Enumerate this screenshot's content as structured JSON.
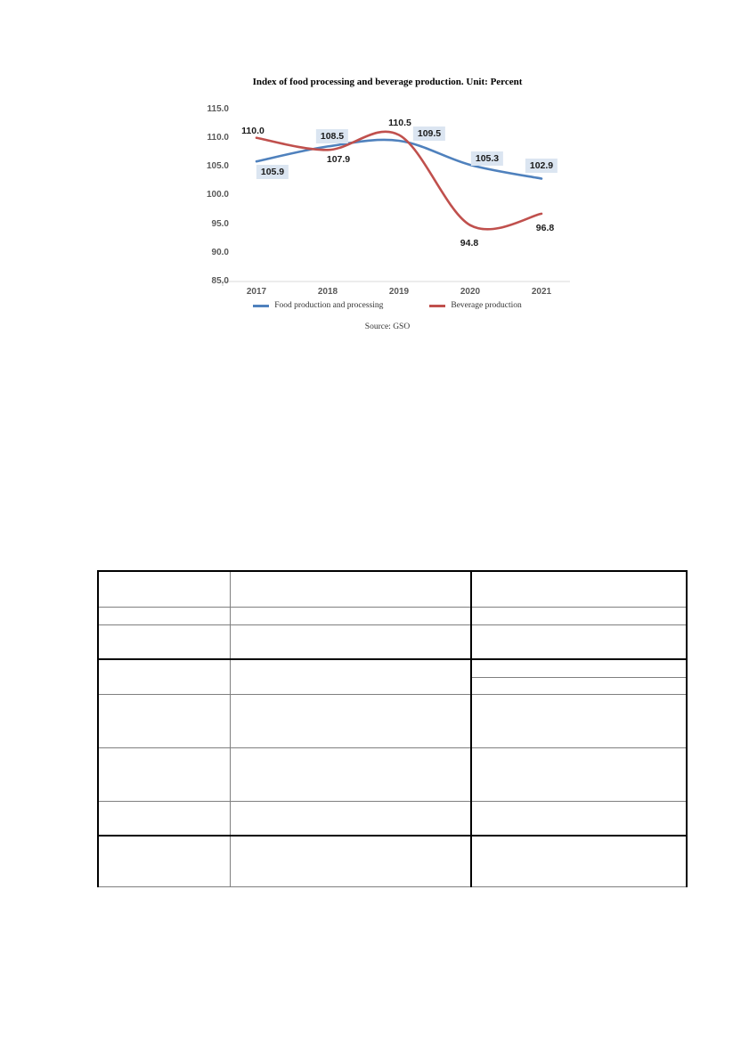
{
  "chart_data": {
    "type": "line",
    "title": "Index of food processing and beverage production. Unit: Percent",
    "categories": [
      "2017",
      "2018",
      "2019",
      "2020",
      "2021"
    ],
    "series": [
      {
        "name": "Food production and processing",
        "color": "#4F81BD",
        "values": [
          105.9,
          108.5,
          109.5,
          105.3,
          102.9
        ],
        "label_style": "boxed",
        "label_bg": "#DBE5F1",
        "label_offsets": [
          [
            18,
            12
          ],
          [
            5,
            -11
          ],
          [
            34,
            -8
          ],
          [
            19,
            -7
          ],
          [
            0,
            -15
          ]
        ]
      },
      {
        "name": "Beverage production",
        "color": "#C0504D",
        "values": [
          110.0,
          107.9,
          110.5,
          94.8,
          96.8
        ],
        "label_style": "plain",
        "label_offsets": [
          [
            -4,
            -8
          ],
          [
            12,
            11
          ],
          [
            1,
            -14
          ],
          [
            -1,
            20
          ],
          [
            4,
            16
          ]
        ]
      }
    ],
    "ylim": [
      85,
      115
    ],
    "ytick_step": 5,
    "ytick_labels": [
      "85.0",
      "90.0",
      "95.0",
      "100.0",
      "105.0",
      "110.0",
      "115.0"
    ],
    "grid": false,
    "legend_position": "bottom",
    "axis_color": "#D9D9D9",
    "tick_label_color": "#595959",
    "source": "Source: GSO"
  },
  "table": {
    "column_count": 3,
    "row_count": 8,
    "cells": "empty"
  }
}
